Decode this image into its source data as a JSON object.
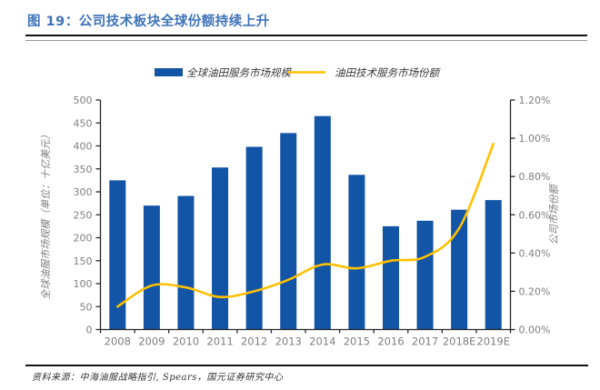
{
  "header": {
    "title": "图 19：公司技术板块全球份额持续上升"
  },
  "footer": {
    "source": "资料来源：中海油服战略指引, Spears，国元证券研究中心"
  },
  "chart_data": {
    "type": "bar",
    "subtype": "bar-and-line-combo",
    "categories": [
      "2008",
      "2009",
      "2010",
      "2011",
      "2012",
      "2013",
      "2014",
      "2015",
      "2016",
      "2017",
      "2018E",
      "2019E"
    ],
    "series": [
      {
        "name": "全球油田服务市场规模",
        "type": "bar",
        "axis": "left",
        "color": "#1254A6",
        "values": [
          325,
          270,
          291,
          353,
          398,
          428,
          465,
          337,
          225,
          237,
          261,
          282
        ]
      },
      {
        "name": "油田技术服务市场份额",
        "type": "line",
        "axis": "right",
        "color": "#FFC000",
        "values": [
          0.12,
          0.23,
          0.22,
          0.17,
          0.2,
          0.26,
          0.34,
          0.32,
          0.36,
          0.38,
          0.53,
          0.97
        ]
      }
    ],
    "left_axis": {
      "title": "全球油服市场规模（单位：十亿美元）",
      "min": 0,
      "max": 500,
      "step": 50
    },
    "right_axis": {
      "title": "公司市场份额",
      "min": 0,
      "max": 1.2,
      "step": 0.2,
      "format": "percent2"
    },
    "legend_position": "top",
    "grid": false,
    "colors": {
      "axis_line": "#262626",
      "tick_label": "#7F7F7F",
      "legend_text": "#3b3b3b",
      "title_text": "#3E73B9"
    }
  }
}
